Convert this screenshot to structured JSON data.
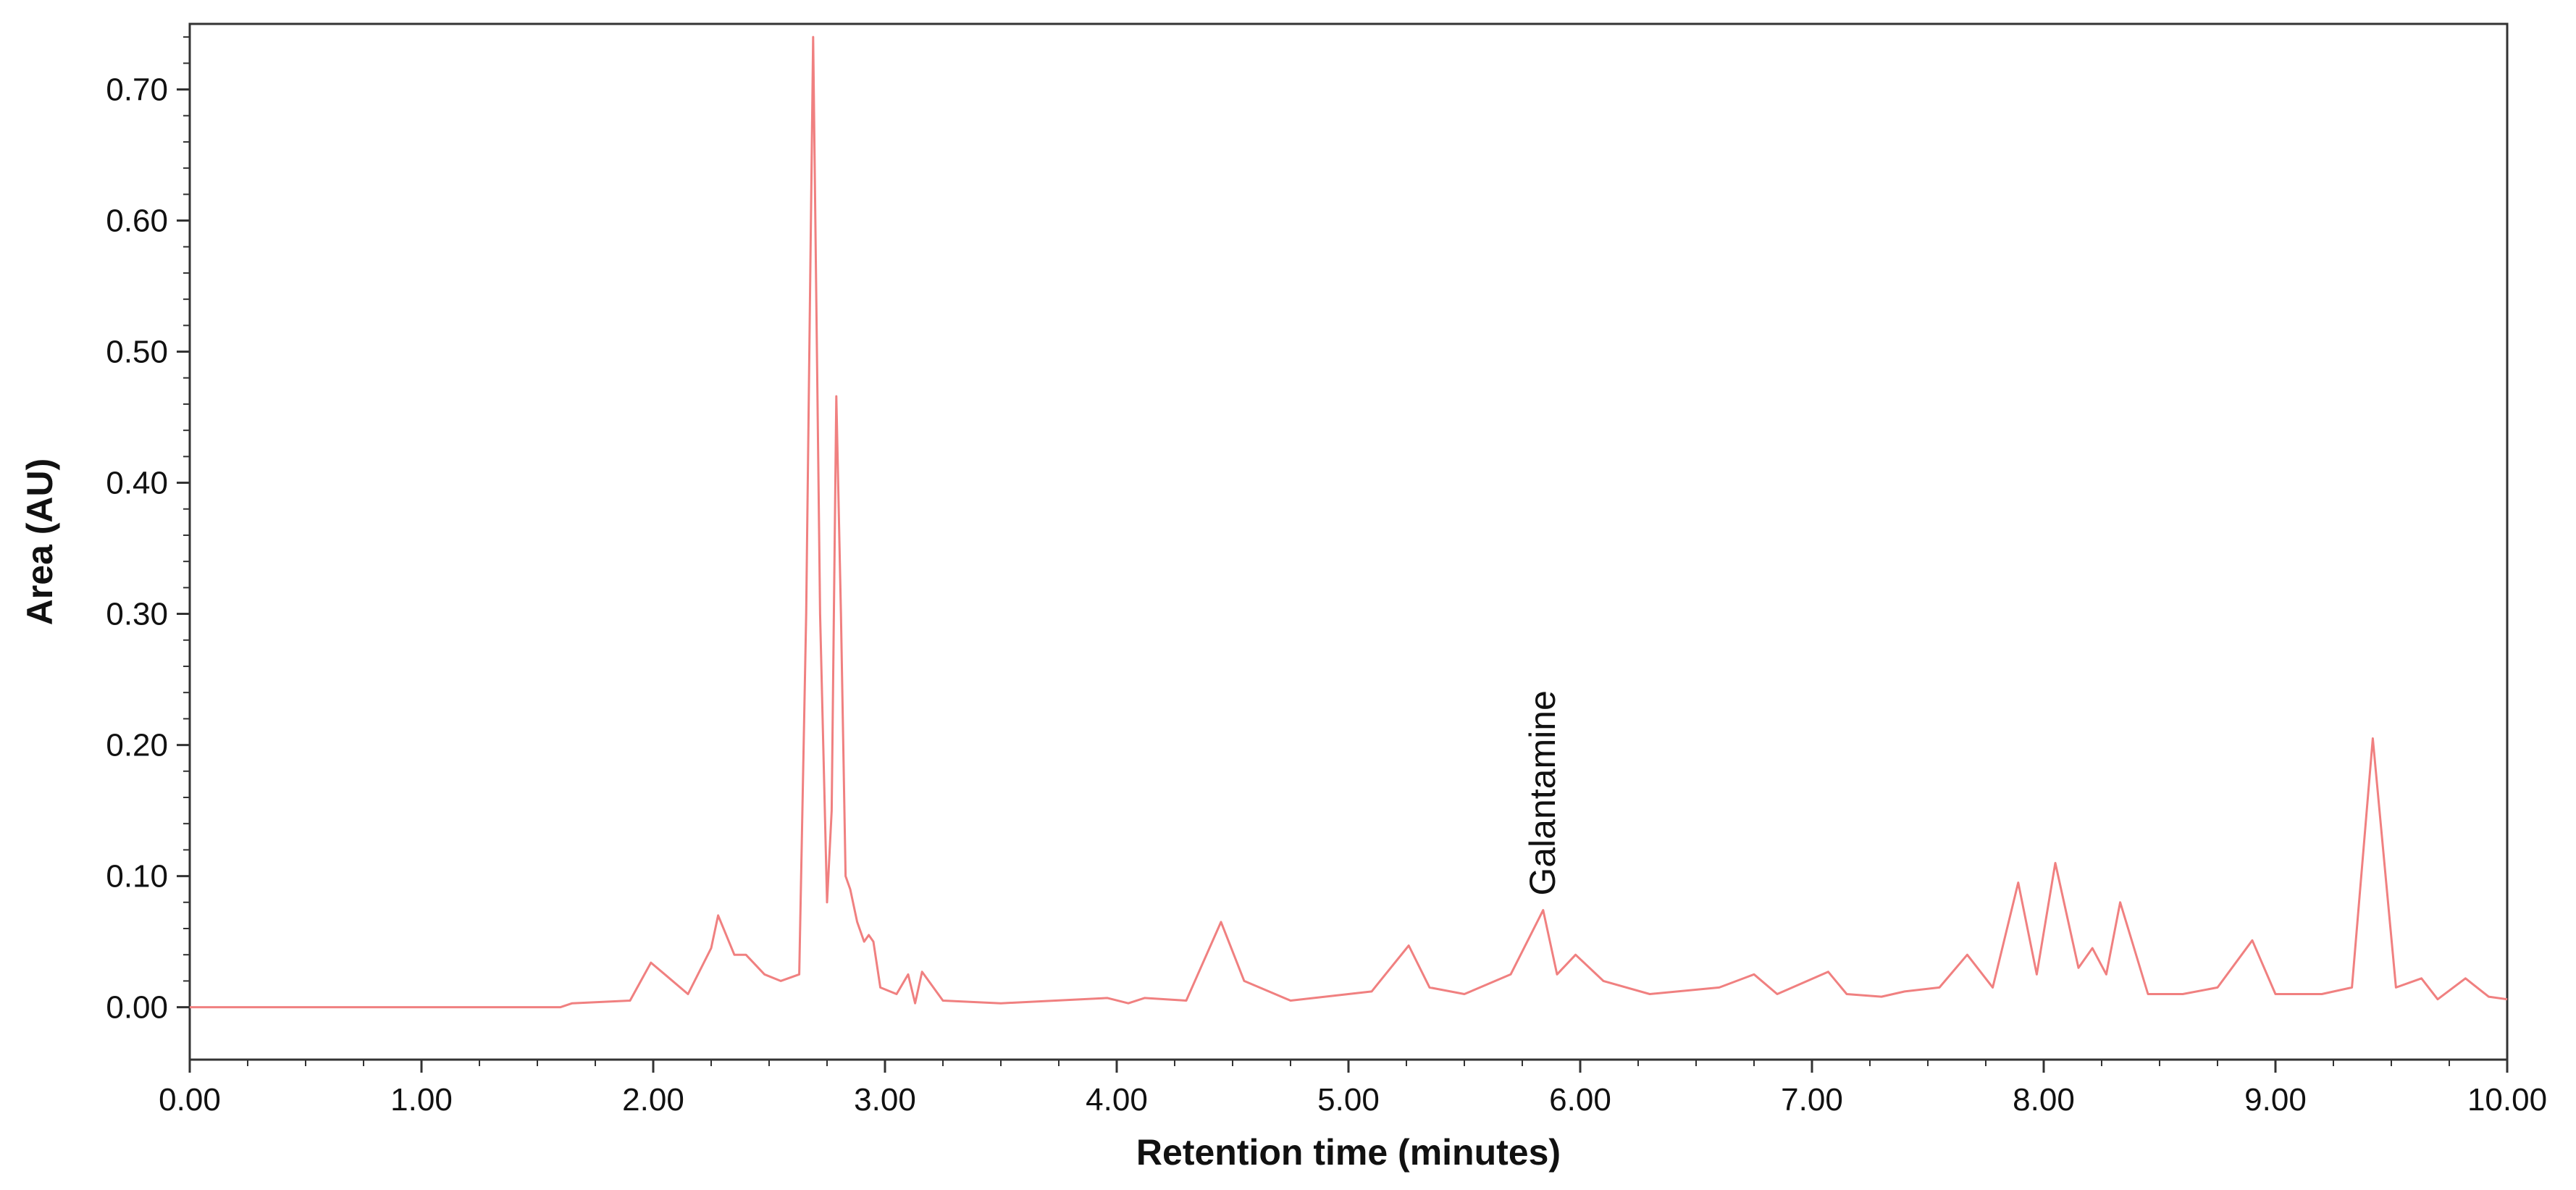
{
  "chart_data": {
    "type": "line",
    "title": "",
    "xlabel": "Retention time (minutes)",
    "ylabel": "Area (AU)",
    "xlim": [
      0,
      10
    ],
    "ylim": [
      -0.04,
      0.75
    ],
    "x_ticks": [
      0,
      1,
      2,
      3,
      4,
      5,
      6,
      7,
      8,
      9,
      10
    ],
    "x_tick_labels": [
      "0.00",
      "1.00",
      "2.00",
      "3.00",
      "4.00",
      "5.00",
      "6.00",
      "7.00",
      "8.00",
      "9.00",
      "10.00"
    ],
    "y_ticks": [
      0,
      0.1,
      0.2,
      0.3,
      0.4,
      0.5,
      0.6,
      0.7
    ],
    "y_tick_labels": [
      "0.00",
      "0.10",
      "0.20",
      "0.30",
      "0.40",
      "0.50",
      "0.60",
      "0.70"
    ],
    "grid": false,
    "legend": "none",
    "line_color": "#f08080",
    "series": [
      {
        "x": [
          0.0,
          1.0,
          1.6,
          1.65,
          1.9,
          1.99,
          2.05,
          2.15,
          2.25,
          2.28,
          2.35,
          2.4,
          2.48,
          2.55,
          2.63,
          2.66,
          2.69,
          2.72,
          2.75,
          2.77,
          2.79,
          2.81,
          2.83,
          2.85,
          2.88,
          2.91,
          2.93,
          2.95,
          2.98,
          3.05,
          3.1,
          3.13,
          3.16,
          3.25,
          3.5,
          3.96,
          4.05,
          4.12,
          4.3,
          4.45,
          4.55,
          4.75,
          5.1,
          5.26,
          5.35,
          5.5,
          5.7,
          5.84,
          5.9,
          5.98,
          6.1,
          6.3,
          6.6,
          6.75,
          6.85,
          7.07,
          7.15,
          7.3,
          7.4,
          7.55,
          7.67,
          7.78,
          7.89,
          7.97,
          8.05,
          8.15,
          8.21,
          8.27,
          8.33,
          8.45,
          8.6,
          8.75,
          8.9,
          9.0,
          9.2,
          9.33,
          9.42,
          9.52,
          9.63,
          9.7,
          9.82,
          9.92,
          10.0
        ],
        "y": [
          0.0,
          0.0,
          0.0,
          0.003,
          0.005,
          0.034,
          0.025,
          0.01,
          0.045,
          0.07,
          0.04,
          0.04,
          0.025,
          0.02,
          0.025,
          0.3,
          0.74,
          0.3,
          0.08,
          0.15,
          0.466,
          0.3,
          0.1,
          0.09,
          0.065,
          0.05,
          0.055,
          0.05,
          0.015,
          0.01,
          0.025,
          0.003,
          0.027,
          0.005,
          0.003,
          0.007,
          0.003,
          0.007,
          0.005,
          0.065,
          0.02,
          0.005,
          0.012,
          0.047,
          0.015,
          0.01,
          0.025,
          0.074,
          0.025,
          0.04,
          0.02,
          0.01,
          0.015,
          0.025,
          0.01,
          0.027,
          0.01,
          0.008,
          0.012,
          0.015,
          0.04,
          0.015,
          0.095,
          0.025,
          0.11,
          0.03,
          0.045,
          0.025,
          0.08,
          0.01,
          0.01,
          0.015,
          0.051,
          0.01,
          0.01,
          0.015,
          0.205,
          0.015,
          0.022,
          0.006,
          0.022,
          0.008,
          0.006
        ]
      }
    ],
    "annotations": [
      {
        "text": "Galantamine",
        "x": 5.84,
        "y": 0.074
      }
    ]
  }
}
